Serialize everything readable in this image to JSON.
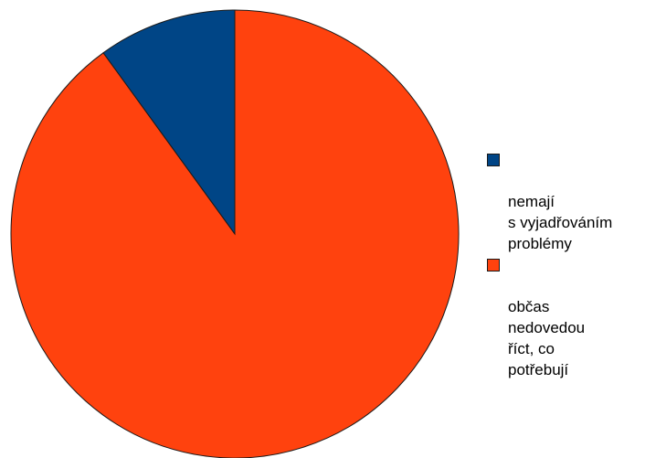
{
  "chart_data": {
    "type": "pie",
    "title": "",
    "slices": [
      {
        "label": "nemají\ns vyjadřováním\nproblémy",
        "value": 10,
        "color": "#004586"
      },
      {
        "label": " občas\nnedovedou\nříct, co\npotřebují",
        "value": 90,
        "color": "#ff420e"
      }
    ],
    "start_angle_deg": 0,
    "direction": "counterclockwise",
    "legend_position": "right"
  }
}
